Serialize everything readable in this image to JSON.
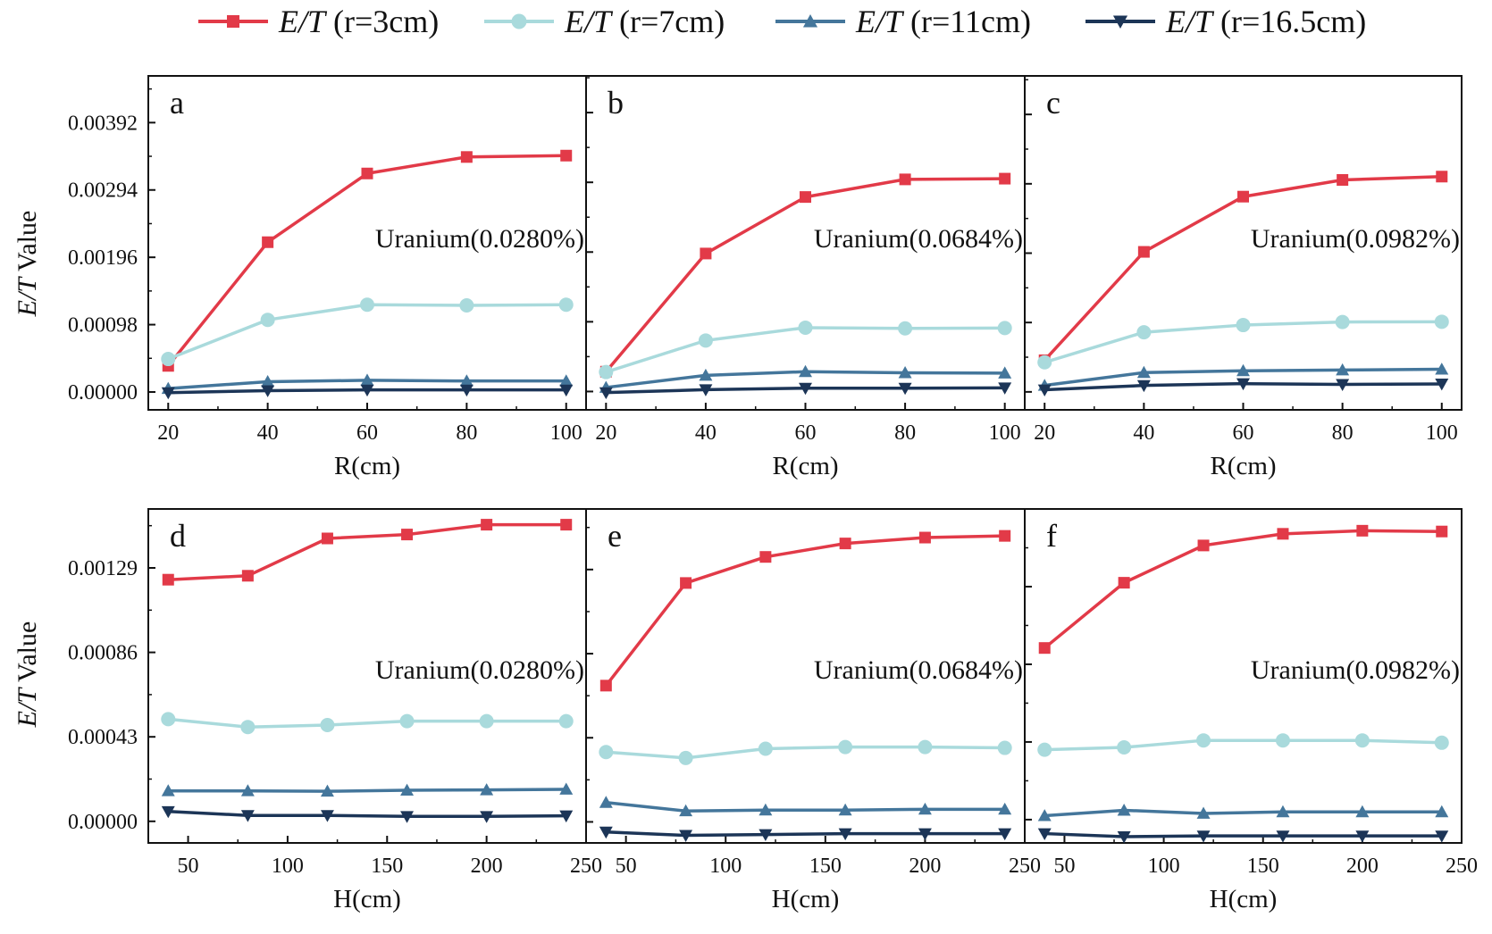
{
  "legend": [
    {
      "prefix": "E/T",
      "suffix": " (r=3cm)",
      "color": "#e23a48",
      "marker": "square"
    },
    {
      "prefix": "E/T",
      "suffix": " (r=7cm)",
      "color": "#a9dadc",
      "marker": "circle"
    },
    {
      "prefix": "E/T",
      "suffix": " (r=11cm)",
      "color": "#44769b",
      "marker": "triangle-up"
    },
    {
      "prefix": "E/T",
      "suffix": " (r=16.5cm)",
      "color": "#1c3557",
      "marker": "triangle-down"
    }
  ],
  "y_title": {
    "italic": "E/T",
    "rest": " Value"
  },
  "chart_data": [
    {
      "type": "line",
      "letter": "a",
      "annotation": "Uranium(0.0280%)",
      "xlabel": "R(cm)",
      "ylabel": "E/T Value",
      "x": [
        20,
        40,
        60,
        80,
        100
      ],
      "xlim": [
        16,
        104
      ],
      "xticks": [
        20,
        40,
        60,
        80,
        100
      ],
      "xtick_labels": [
        "20",
        "40",
        "60",
        "80",
        "100"
      ],
      "ylim": [
        -0.00026,
        0.0046
      ],
      "yticks": [
        0.0,
        0.00098,
        0.00196,
        0.00294,
        0.00392
      ],
      "ytick_labels": [
        "0.00000",
        "0.00098",
        "0.00196",
        "0.00294",
        "0.00392"
      ],
      "series": [
        {
          "name": "E/T (r=3cm)",
          "values": [
            0.00038,
            0.00218,
            0.00318,
            0.00342,
            0.00344
          ]
        },
        {
          "name": "E/T (r=7cm)",
          "values": [
            0.00048,
            0.00105,
            0.00127,
            0.00126,
            0.00127
          ]
        },
        {
          "name": "E/T (r=11cm)",
          "values": [
            5e-05,
            0.00015,
            0.00017,
            0.00016,
            0.00016
          ]
        },
        {
          "name": "E/T (r=16.5cm)",
          "values": [
            -1e-05,
            2e-05,
            3e-05,
            3e-05,
            3e-05
          ]
        }
      ]
    },
    {
      "type": "line",
      "letter": "b",
      "annotation": "Uranium(0.0684%)",
      "xlabel": "R(cm)",
      "ylabel": "E/T Value",
      "x": [
        20,
        40,
        60,
        80,
        100
      ],
      "xlim": [
        16,
        104
      ],
      "xticks": [
        20,
        40,
        60,
        80,
        100
      ],
      "xtick_labels": [
        "20",
        "40",
        "60",
        "80",
        "100"
      ],
      "ylim": [
        -0.0005,
        0.0086
      ],
      "yticks": [
        0.0,
        0.0019,
        0.0038,
        0.0057,
        0.0076
      ],
      "ytick_labels": [],
      "series": [
        {
          "name": "E/T (r=3cm)",
          "values": [
            0.00054,
            0.00376,
            0.0053,
            0.00578,
            0.0058
          ]
        },
        {
          "name": "E/T (r=7cm)",
          "values": [
            0.00053,
            0.00139,
            0.00174,
            0.00172,
            0.00173
          ]
        },
        {
          "name": "E/T (r=11cm)",
          "values": [
            0.00011,
            0.00044,
            0.00054,
            0.00051,
            0.0005
          ]
        },
        {
          "name": "E/T (r=16.5cm)",
          "values": [
            -3e-05,
            5e-05,
            9e-05,
            9e-05,
            0.0001
          ]
        }
      ]
    },
    {
      "type": "line",
      "letter": "c",
      "annotation": "Uranium(0.0982%)",
      "xlabel": "R(cm)",
      "ylabel": "E/T Value",
      "x": [
        20,
        40,
        60,
        80,
        100
      ],
      "xlim": [
        16,
        104
      ],
      "xticks": [
        20,
        40,
        60,
        80,
        100
      ],
      "xtick_labels": [
        "20",
        "40",
        "60",
        "80",
        "100"
      ],
      "ylim": [
        -0.0007,
        0.0123
      ],
      "yticks": [
        0.0,
        0.0027,
        0.0054,
        0.0081,
        0.0108
      ],
      "ytick_labels": [],
      "series": [
        {
          "name": "E/T (r=3cm)",
          "values": [
            0.00123,
            0.00545,
            0.0076,
            0.00825,
            0.00838
          ]
        },
        {
          "name": "E/T (r=7cm)",
          "values": [
            0.00115,
            0.00232,
            0.0026,
            0.00272,
            0.00273
          ]
        },
        {
          "name": "E/T (r=11cm)",
          "values": [
            0.00025,
            0.00075,
            0.00082,
            0.00085,
            0.00088
          ]
        },
        {
          "name": "E/T (r=16.5cm)",
          "values": [
            8e-05,
            0.00025,
            0.00032,
            0.00029,
            0.00031
          ]
        }
      ]
    },
    {
      "type": "line",
      "letter": "d",
      "annotation": "Uranium(0.0280%)",
      "xlabel": "H(cm)",
      "ylabel": "E/T Value",
      "x": [
        40,
        80,
        120,
        160,
        200,
        240
      ],
      "xlim": [
        30,
        250
      ],
      "xticks": [
        50,
        100,
        150,
        200,
        250
      ],
      "xtick_labels": [
        "50",
        "100",
        "150",
        "200",
        "250"
      ],
      "ylim": [
        -0.00011,
        0.00159
      ],
      "yticks": [
        0.0,
        0.00043,
        0.00086,
        0.00129
      ],
      "ytick_labels": [
        "0.00000",
        "0.00043",
        "0.00086",
        "0.00129"
      ],
      "series": [
        {
          "name": "E/T (r=3cm)",
          "values": [
            0.00123,
            0.00125,
            0.00144,
            0.00146,
            0.00151,
            0.00151
          ]
        },
        {
          "name": "E/T (r=7cm)",
          "values": [
            0.00052,
            0.00048,
            0.00049,
            0.00051,
            0.00051,
            0.00051
          ]
        },
        {
          "name": "E/T (r=11cm)",
          "values": [
            0.000155,
            0.000155,
            0.000153,
            0.000158,
            0.00016,
            0.000163
          ]
        },
        {
          "name": "E/T (r=16.5cm)",
          "values": [
            5e-05,
            3e-05,
            3e-05,
            2.5e-05,
            2.5e-05,
            2.8e-05
          ]
        }
      ]
    },
    {
      "type": "line",
      "letter": "e",
      "annotation": "Uranium(0.0684%)",
      "xlabel": "H(cm)",
      "ylabel": "E/T Value",
      "x": [
        40,
        80,
        120,
        160,
        200,
        240
      ],
      "xlim": [
        30,
        250
      ],
      "xticks": [
        50,
        100,
        150,
        200,
        250
      ],
      "xtick_labels": [
        "50",
        "100",
        "150",
        "200",
        "250"
      ],
      "ylim": [
        -0.00025,
        0.00372
      ],
      "yticks": [
        0.0,
        0.001,
        0.002,
        0.003
      ],
      "ytick_labels": [],
      "series": [
        {
          "name": "E/T (r=3cm)",
          "values": [
            0.00162,
            0.00284,
            0.00315,
            0.00331,
            0.00338,
            0.0034
          ]
        },
        {
          "name": "E/T (r=7cm)",
          "values": [
            0.00083,
            0.00076,
            0.00087,
            0.00089,
            0.00089,
            0.00088
          ]
        },
        {
          "name": "E/T (r=11cm)",
          "values": [
            0.00023,
            0.00013,
            0.00014,
            0.00014,
            0.00015,
            0.00015
          ]
        },
        {
          "name": "E/T (r=16.5cm)",
          "values": [
            -0.00012,
            -0.00016,
            -0.00015,
            -0.00014,
            -0.00014,
            -0.00014
          ]
        }
      ]
    },
    {
      "type": "line",
      "letter": "f",
      "annotation": "Uranium(0.0982%)",
      "xlabel": "H(cm)",
      "ylabel": "E/T Value",
      "x": [
        40,
        80,
        120,
        160,
        200,
        240
      ],
      "xlim": [
        30,
        250
      ],
      "xticks": [
        50,
        100,
        150,
        200,
        250
      ],
      "xtick_labels": [
        "50",
        "100",
        "150",
        "200",
        "250"
      ],
      "ylim": [
        -0.0003,
        0.004
      ],
      "yticks": [
        0.0,
        0.001,
        0.002,
        0.003
      ],
      "ytick_labels": [],
      "series": [
        {
          "name": "E/T (r=3cm)",
          "values": [
            0.00221,
            0.00305,
            0.00353,
            0.00368,
            0.00372,
            0.00371
          ]
        },
        {
          "name": "E/T (r=7cm)",
          "values": [
            0.0009,
            0.00093,
            0.00102,
            0.00102,
            0.00102,
            0.00099
          ]
        },
        {
          "name": "E/T (r=11cm)",
          "values": [
            5e-05,
            0.00012,
            8e-05,
            0.0001,
            0.0001,
            0.0001
          ]
        },
        {
          "name": "E/T (r=16.5cm)",
          "values": [
            -0.00018,
            -0.00022,
            -0.00021,
            -0.00021,
            -0.00021,
            -0.00021
          ]
        }
      ]
    }
  ]
}
